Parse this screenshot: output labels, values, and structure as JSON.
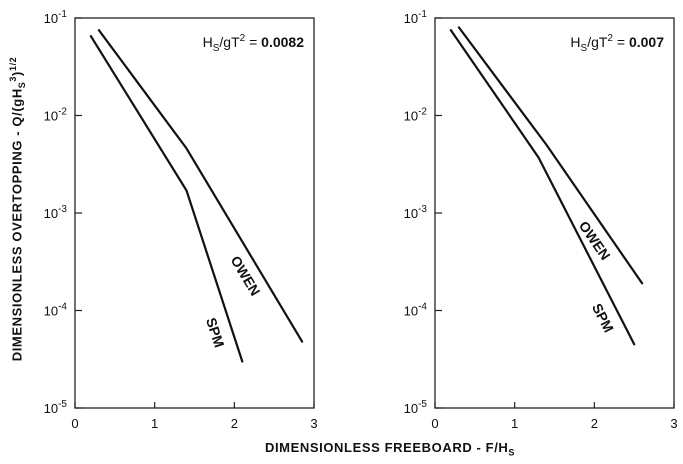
{
  "chart_data": [
    {
      "type": "line",
      "annotation": {
        "lhs_base": "H",
        "lhs_sub": "S",
        "lhs_mid": "/gT",
        "lhs_sup": "2",
        "equals": " = ",
        "value": "0.0082"
      },
      "xlim": [
        0,
        3
      ],
      "ylim": [
        1e-05,
        0.1
      ],
      "yscale": "log",
      "x_ticks": [
        "0",
        "1",
        "2",
        "3"
      ],
      "y_ticks": [
        {
          "base": "10",
          "exp": "-1",
          "value": 0.1
        },
        {
          "base": "10",
          "exp": "-2",
          "value": 0.01
        },
        {
          "base": "10",
          "exp": "-3",
          "value": 0.001
        },
        {
          "base": "10",
          "exp": "-4",
          "value": 0.0001
        },
        {
          "base": "10",
          "exp": "-5",
          "value": 1e-05
        }
      ],
      "series": [
        {
          "name": "OWEN",
          "x": [
            0.3,
            1.4,
            2.85
          ],
          "y": [
            0.075,
            0.0046,
            4.8e-05
          ]
        },
        {
          "name": "SPM",
          "x": [
            0.2,
            1.4,
            2.1
          ],
          "y": [
            0.065,
            0.0017,
            3e-05
          ]
        }
      ]
    },
    {
      "type": "line",
      "annotation": {
        "lhs_base": "H",
        "lhs_sub": "S",
        "lhs_mid": "/gT",
        "lhs_sup": "2",
        "equals": " = ",
        "value": "0.007"
      },
      "xlim": [
        0,
        3
      ],
      "ylim": [
        1e-05,
        0.1
      ],
      "yscale": "log",
      "x_ticks": [
        "0",
        "1",
        "2",
        "3"
      ],
      "y_ticks": [
        {
          "base": "10",
          "exp": "-1",
          "value": 0.1
        },
        {
          "base": "10",
          "exp": "-2",
          "value": 0.01
        },
        {
          "base": "10",
          "exp": "-3",
          "value": 0.001
        },
        {
          "base": "10",
          "exp": "-4",
          "value": 0.0001
        },
        {
          "base": "10",
          "exp": "-5",
          "value": 1e-05
        }
      ],
      "series": [
        {
          "name": "OWEN",
          "x": [
            0.3,
            1.4,
            2.6
          ],
          "y": [
            0.08,
            0.005,
            0.00019
          ]
        },
        {
          "name": "SPM",
          "x": [
            0.2,
            1.3,
            2.5
          ],
          "y": [
            0.075,
            0.0037,
            4.5e-05
          ]
        }
      ]
    }
  ],
  "axis_labels": {
    "y_main": "DIMENSIONLESS OVERTOPPING - Q/(gH",
    "y_sub": "S",
    "y_sup": "3",
    "y_tail": ")",
    "y_tail_sup": "1/2",
    "x_main": "DIMENSIONLESS FREEBOARD - F/H",
    "x_sub": "S"
  },
  "colors": {
    "line": "#111111",
    "axis": "#222222"
  }
}
